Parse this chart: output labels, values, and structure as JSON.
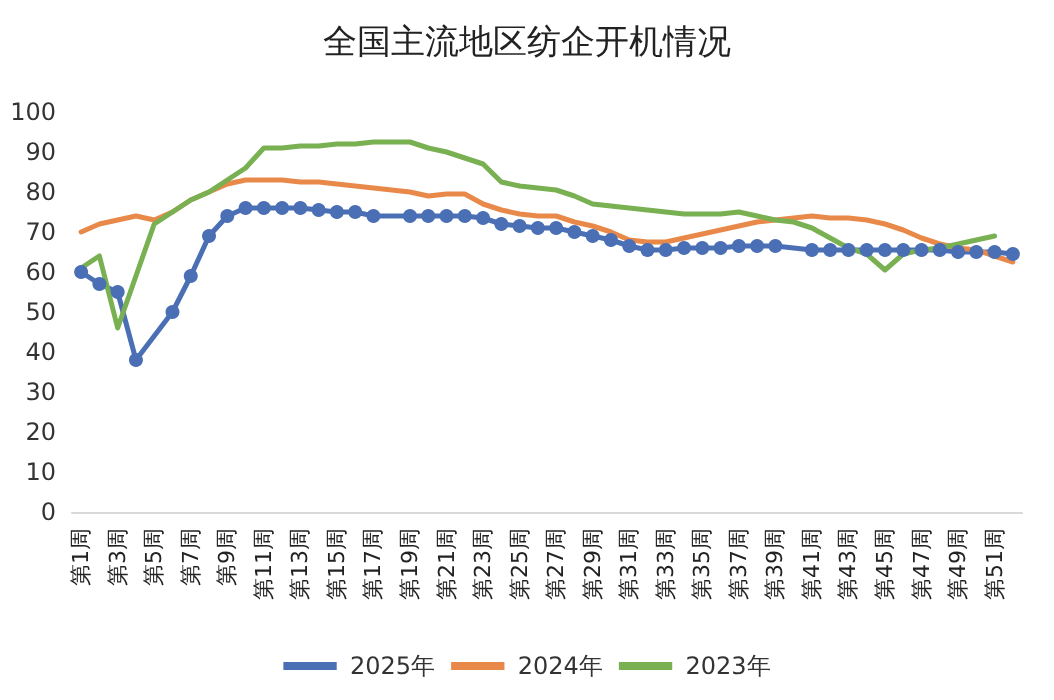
{
  "chart_data": {
    "type": "line",
    "title": "全国主流地区纺企开机情况",
    "categories": [
      "第1周",
      null,
      "第3周",
      null,
      "第5周",
      null,
      "第7周",
      null,
      "第9周",
      null,
      "第11周",
      null,
      "第13周",
      null,
      "第15周",
      null,
      "第17周",
      null,
      "第19周",
      null,
      "第21周",
      null,
      "第23周",
      null,
      "第25周",
      null,
      "第27周",
      null,
      "第29周",
      null,
      "第31周",
      null,
      "第33周",
      null,
      "第35周",
      null,
      "第37周",
      null,
      "第39周",
      null,
      "第41周",
      null,
      "第43周",
      null,
      "第45周",
      null,
      "第47周",
      null,
      "第49周",
      null,
      "第51周",
      null
    ],
    "series": [
      {
        "name": "2025年",
        "color": "#4a6fb5",
        "marker": "circle",
        "values": [
          60,
          57,
          55,
          38,
          null,
          50,
          59,
          69,
          74,
          76,
          76,
          76,
          76,
          75.5,
          75,
          75,
          74,
          null,
          74,
          74,
          74,
          74,
          73.5,
          72,
          71.5,
          71,
          71,
          70,
          69,
          68,
          66.5,
          65.5,
          65.5,
          66,
          66,
          66,
          66.5,
          66.5,
          66.5,
          null,
          65.5,
          65.5,
          65.5,
          65.5,
          65.5,
          65.5,
          65.5,
          65.5,
          65,
          65,
          65,
          64.5
        ]
      },
      {
        "name": "2024年",
        "color": "#e8894a",
        "marker": "none",
        "values": [
          70,
          72,
          73,
          74,
          73,
          75,
          78,
          80,
          82,
          83,
          83,
          83,
          82.5,
          82.5,
          82,
          81.5,
          81,
          80.5,
          80,
          79,
          79.5,
          79.5,
          77,
          75.5,
          74.5,
          74,
          74,
          72.5,
          71.5,
          70,
          68,
          67.5,
          67.5,
          68.5,
          69.5,
          70.5,
          71.5,
          72.5,
          73,
          73.5,
          74,
          73.5,
          73.5,
          73,
          72,
          70.5,
          68.5,
          67,
          66,
          65.5,
          64,
          62.5
        ]
      },
      {
        "name": "2023年",
        "color": "#78b052",
        "marker": "none",
        "values": [
          61,
          64,
          46,
          59,
          72,
          75,
          78,
          80,
          83,
          86,
          91,
          91,
          91.5,
          91.5,
          92,
          92,
          92.5,
          92.5,
          92.5,
          91,
          90,
          88.5,
          87,
          82.5,
          81.5,
          81,
          80.5,
          79,
          77,
          76.5,
          76,
          75.5,
          75,
          74.5,
          74.5,
          74.5,
          75,
          74,
          73,
          72.5,
          71,
          68.5,
          66,
          64.5,
          60.5,
          64.5,
          65.5,
          66,
          67,
          68,
          69,
          null
        ]
      }
    ],
    "ylim": [
      0,
      100
    ],
    "yticks": [
      0,
      10,
      20,
      30,
      40,
      50,
      60,
      70,
      80,
      90,
      100
    ],
    "grid": false,
    "legend": "bottom",
    "line_style": "solid"
  }
}
